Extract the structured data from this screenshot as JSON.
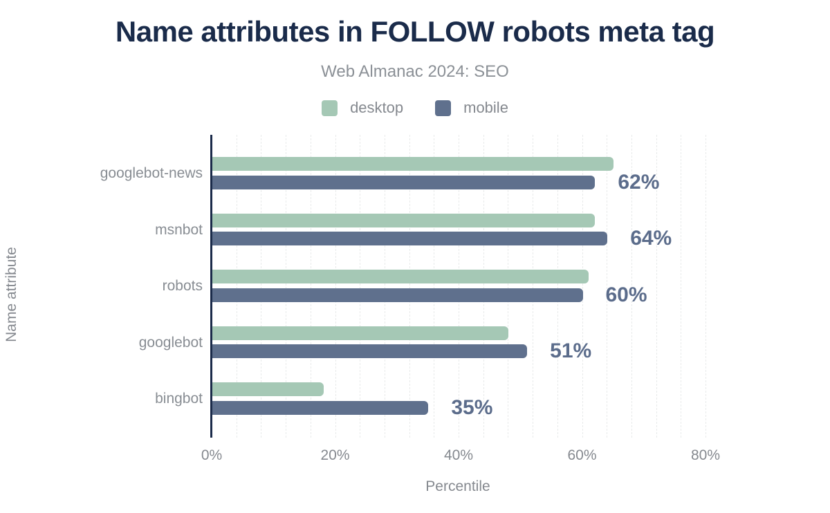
{
  "header": {
    "title": "Name attributes in FOLLOW robots meta tag",
    "subtitle": "Web Almanac 2024: SEO"
  },
  "legend": {
    "items": [
      {
        "label": "desktop",
        "color": "#a5c8b5"
      },
      {
        "label": "mobile",
        "color": "#5f708d"
      }
    ]
  },
  "chart_data": {
    "type": "bar",
    "orientation": "horizontal",
    "title": "Name attributes in FOLLOW robots meta tag",
    "subtitle": "Web Almanac 2024: SEO",
    "xlabel": "Percentile",
    "ylabel": "Name attribute",
    "categories": [
      "googlebot-news",
      "msnbot",
      "robots",
      "googlebot",
      "bingbot"
    ],
    "series": [
      {
        "name": "desktop",
        "color": "#a5c8b5",
        "values": [
          65,
          62,
          61,
          48,
          18
        ]
      },
      {
        "name": "mobile",
        "color": "#5f708d",
        "values": [
          62,
          64,
          60,
          51,
          35
        ]
      }
    ],
    "value_labels": [
      "62%",
      "64%",
      "60%",
      "51%",
      "35%"
    ],
    "value_labels_on_series": "mobile",
    "x_ticks": [
      {
        "label": "0%",
        "value": 0
      },
      {
        "label": "20%",
        "value": 20
      },
      {
        "label": "40%",
        "value": 40
      },
      {
        "label": "60%",
        "value": 60
      },
      {
        "label": "80%",
        "value": 80
      }
    ],
    "xlim": [
      0,
      100
    ],
    "grid": {
      "show": true,
      "interval_percent": 4,
      "max_percent": 80
    },
    "legend_position": "top"
  },
  "colors": {
    "title": "#1a2b4a",
    "subtitle": "#8b9096",
    "axis_line": "#1b2b4a",
    "tick_label": "#85898f",
    "category_label": "#888d93",
    "value_label": "#5b6c8b",
    "gridline": "#e8eaea",
    "background": "#ffffff"
  }
}
